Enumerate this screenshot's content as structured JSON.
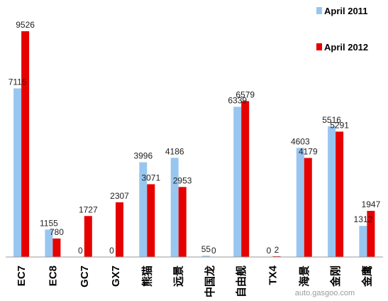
{
  "chart_data": {
    "type": "bar",
    "categories": [
      "EC7",
      "EC8",
      "GC7",
      "GX7",
      "熊猫",
      "远景",
      "中国龙",
      "自由舰",
      "TX4",
      "海景",
      "金刚",
      "金鹰"
    ],
    "series": [
      {
        "name": "April 2011",
        "color": "#99c6f0",
        "values": [
          7115,
          1155,
          0,
          0,
          3996,
          4186,
          55,
          6339,
          0,
          4603,
          5516,
          1312
        ]
      },
      {
        "name": "April 2012",
        "color": "#e60000",
        "values": [
          9526,
          780,
          1727,
          2307,
          3071,
          2953,
          0,
          6579,
          2,
          4179,
          5291,
          1947
        ]
      }
    ],
    "ylim": [
      0,
      9526
    ],
    "legend": "top-right",
    "grid": false
  },
  "watermark": "auto.gasgoo.com"
}
